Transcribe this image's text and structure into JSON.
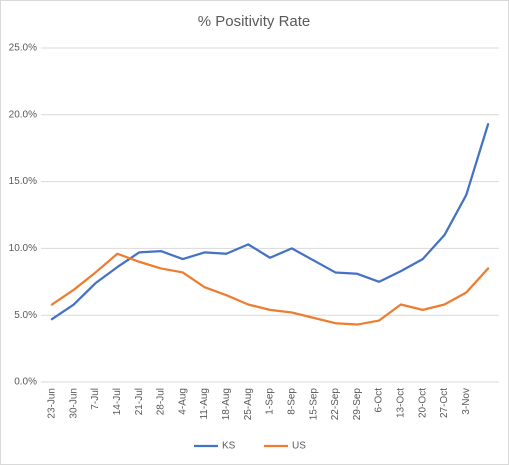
{
  "chart_data": {
    "type": "line",
    "title": "% Positivity Rate",
    "categories": [
      "23-Jun",
      "30-Jun",
      "7-Jul",
      "14-Jul",
      "21-Jul",
      "28-Jul",
      "4-Aug",
      "11-Aug",
      "18-Aug",
      "25-Aug",
      "1-Sep",
      "8-Sep",
      "15-Sep",
      "22-Sep",
      "29-Sep",
      "6-Oct",
      "13-Oct",
      "20-Oct",
      "27-Oct",
      "3-Nov",
      null
    ],
    "series": [
      {
        "name": "KS",
        "color": "#4472c4",
        "values": [
          4.7,
          5.8,
          7.4,
          8.6,
          9.7,
          9.8,
          9.2,
          9.7,
          9.6,
          10.3,
          9.3,
          10.0,
          9.1,
          8.2,
          8.1,
          7.5,
          8.3,
          9.2,
          11.0,
          14.0,
          19.3
        ]
      },
      {
        "name": "US",
        "color": "#ed7d31",
        "values": [
          5.8,
          6.9,
          8.2,
          9.6,
          9.0,
          8.5,
          8.2,
          7.1,
          6.5,
          5.8,
          5.4,
          5.2,
          4.8,
          4.4,
          4.3,
          4.6,
          5.8,
          5.4,
          5.8,
          6.7,
          8.5
        ]
      }
    ],
    "ylim": [
      0,
      25
    ],
    "yticks": [
      {
        "value": 0,
        "label": "0.0%"
      },
      {
        "value": 5,
        "label": "5.0%"
      },
      {
        "value": 10,
        "label": "10.0%"
      },
      {
        "value": 15,
        "label": "15.0%"
      },
      {
        "value": 20,
        "label": "20.0%"
      },
      {
        "value": 25,
        "label": "25.0%"
      }
    ],
    "grid": true,
    "legend": "bottom"
  }
}
